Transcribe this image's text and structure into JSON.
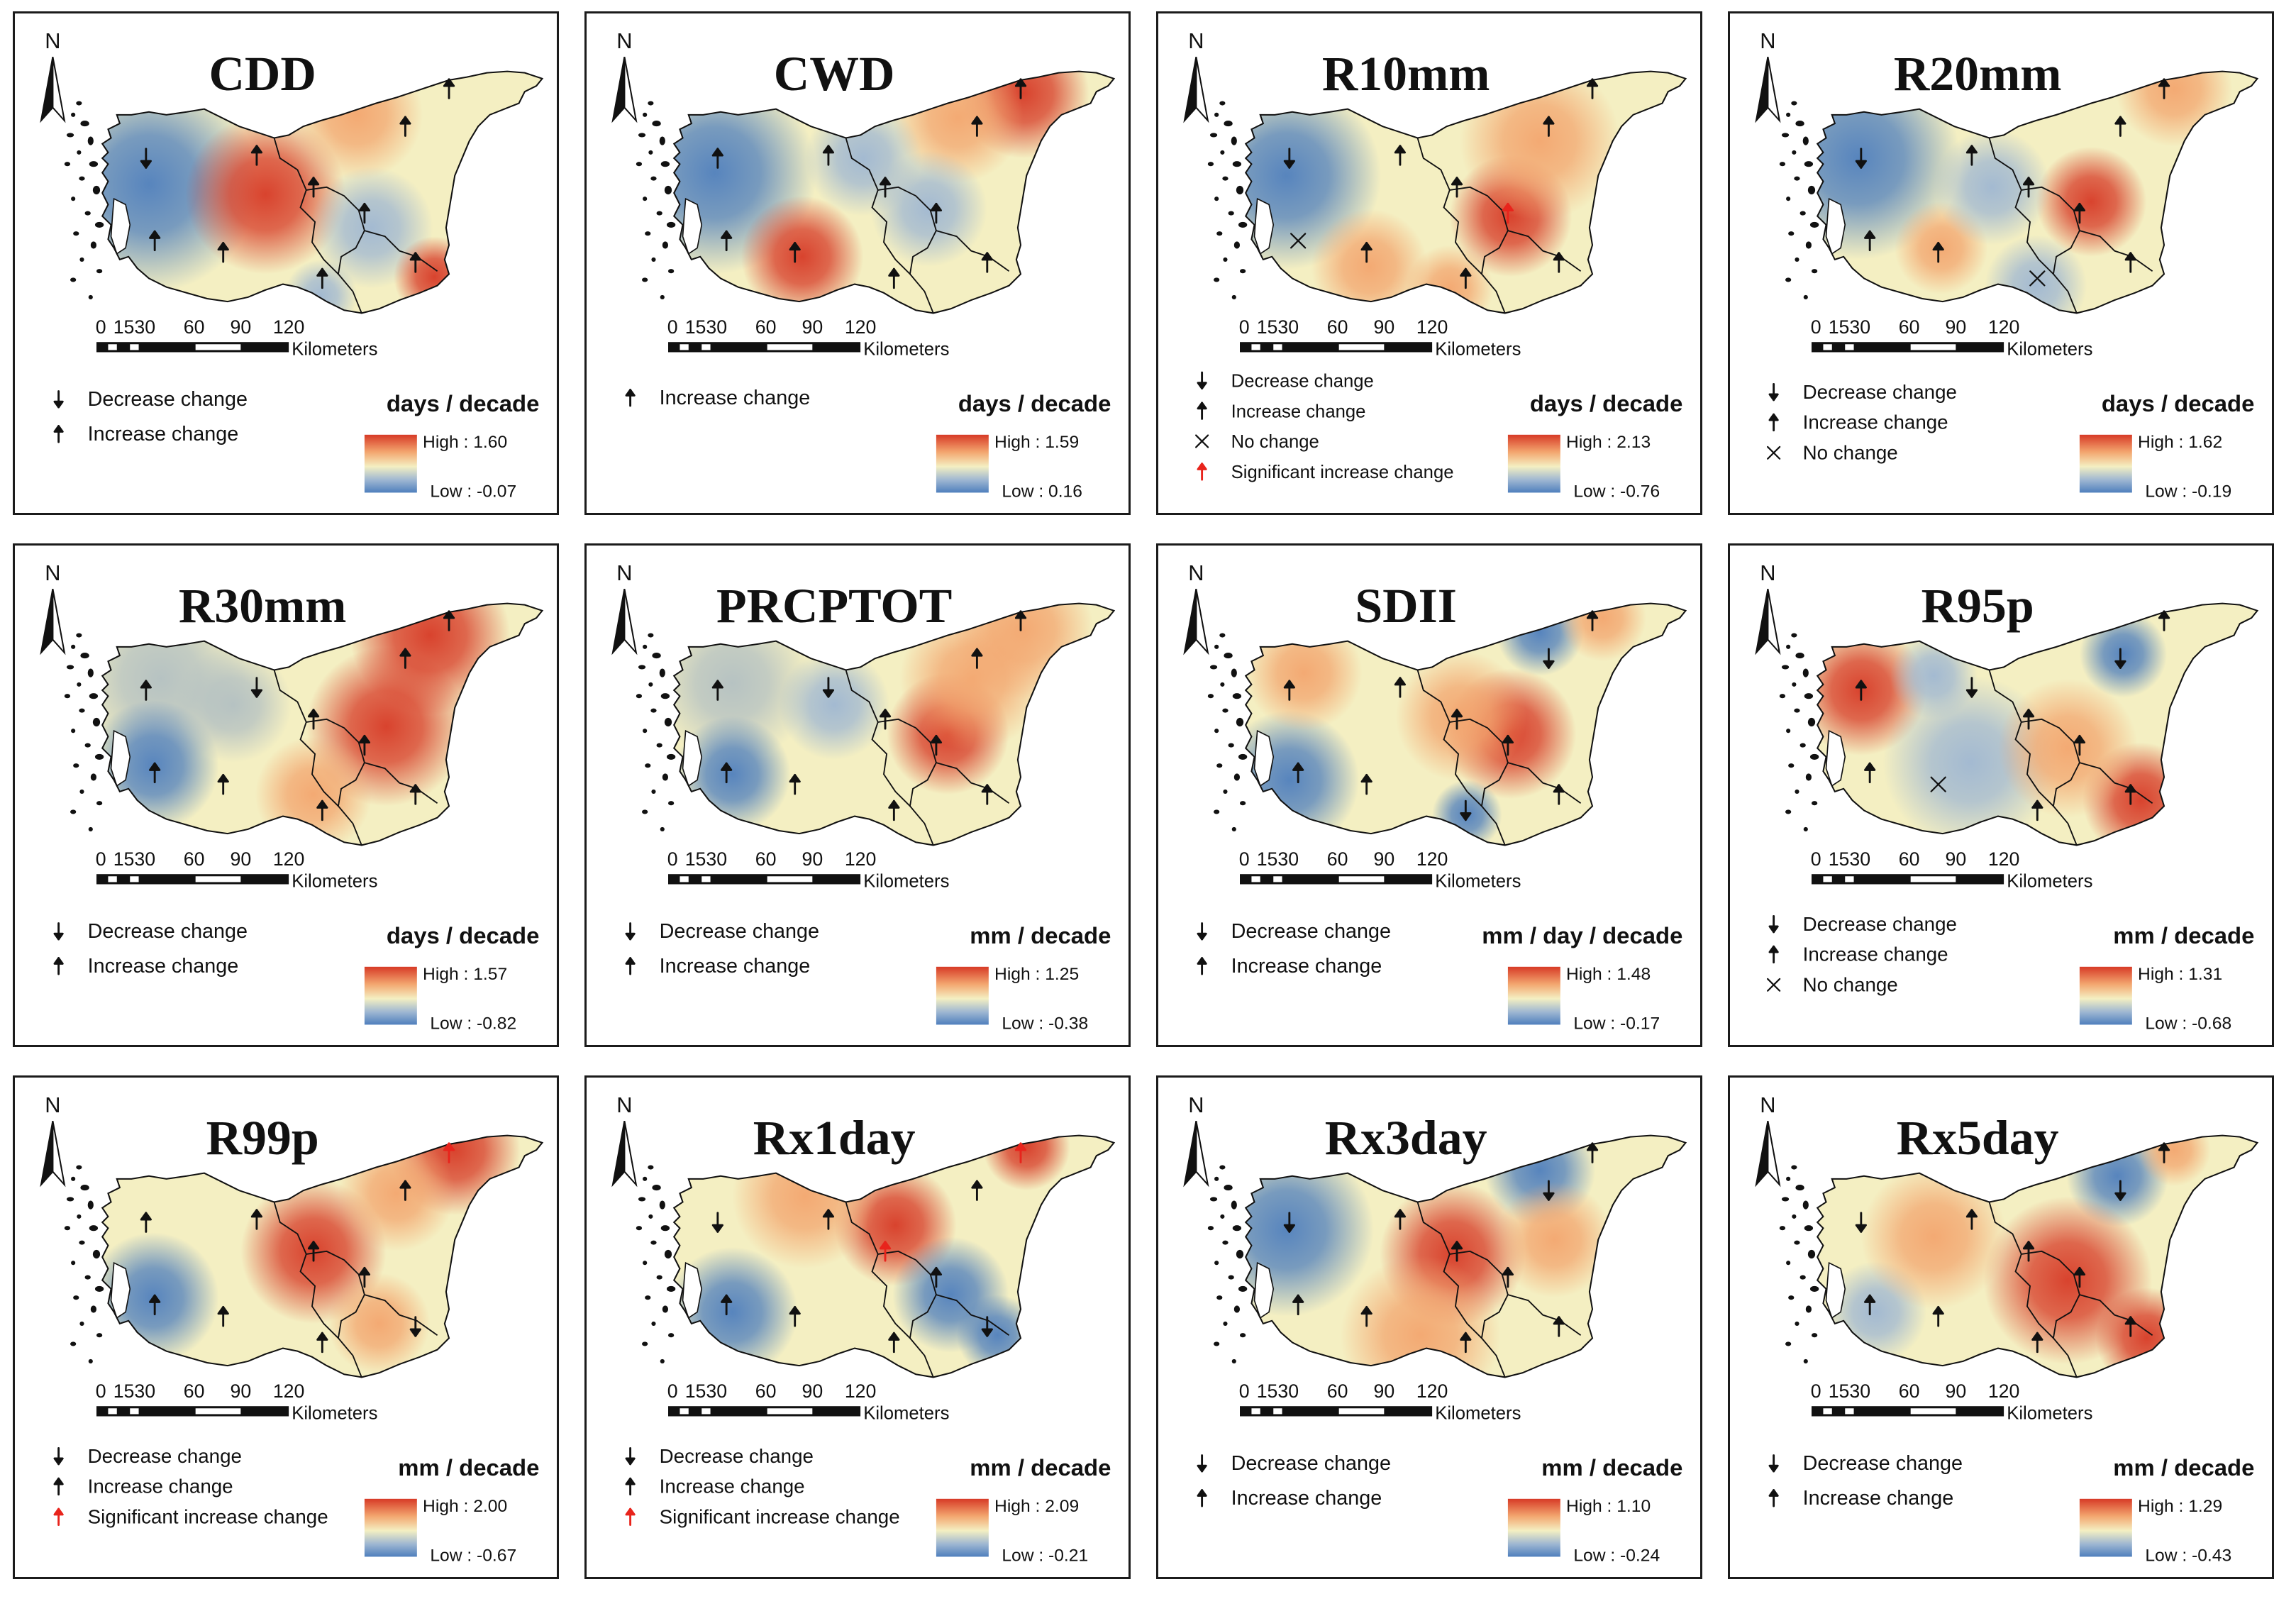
{
  "north": "N",
  "scale": {
    "ticks": [
      "0",
      "1530",
      "60",
      "90",
      "120"
    ],
    "unit": "Kilometers"
  },
  "colors": {
    "high": "#d73a26",
    "mid": "#f4efc2",
    "low": "#4f7fbd",
    "significant": "#e8241c",
    "symbol": "#111111"
  },
  "panels": [
    {
      "title": "CDD",
      "units": "days / decade",
      "high": "High : 1.60",
      "low": "Low : -0.07",
      "legend": [
        {
          "symbol": "decrease",
          "label": "Decrease change"
        },
        {
          "symbol": "increase",
          "label": "Increase change"
        }
      ],
      "stations": [
        "decrease",
        "increase",
        "increase",
        "increase",
        "increase",
        "increase",
        "increase",
        "increase",
        "increase",
        "increase"
      ]
    },
    {
      "title": "CWD",
      "units": "days / decade",
      "high": "High : 1.59",
      "low": "Low : 0.16",
      "legend": [
        {
          "symbol": "increase",
          "label": "Increase change"
        }
      ],
      "stations": [
        "increase",
        "increase",
        "increase",
        "increase",
        "increase",
        "increase",
        "increase",
        "increase",
        "increase",
        "increase"
      ]
    },
    {
      "title": "R10mm",
      "units": "days / decade",
      "high": "High : 2.13",
      "low": "Low : -0.76",
      "legend": [
        {
          "symbol": "decrease",
          "label": "Decrease change"
        },
        {
          "symbol": "increase",
          "label": "Increase change"
        },
        {
          "symbol": "no-change",
          "label": "No change"
        },
        {
          "symbol": "significant-increase",
          "label": "Significant increase change"
        }
      ],
      "stations": [
        "decrease",
        "increase",
        "increase",
        "increase",
        "increase",
        "significant-increase",
        "increase",
        "increase",
        "increase",
        "no-change"
      ]
    },
    {
      "title": "R20mm",
      "units": "days / decade",
      "high": "High : 1.62",
      "low": "Low : -0.19",
      "legend": [
        {
          "symbol": "decrease",
          "label": "Decrease change"
        },
        {
          "symbol": "increase",
          "label": "Increase change"
        },
        {
          "symbol": "no-change",
          "label": "No change"
        }
      ],
      "stations": [
        "decrease",
        "increase",
        "increase",
        "increase",
        "increase",
        "increase",
        "increase",
        "no-change",
        "increase",
        "increase"
      ]
    },
    {
      "title": "R30mm",
      "units": "days / decade",
      "high": "High : 1.57",
      "low": "Low : -0.82",
      "legend": [
        {
          "symbol": "decrease",
          "label": "Decrease change"
        },
        {
          "symbol": "increase",
          "label": "Increase change"
        }
      ],
      "stations": [
        "increase",
        "decrease",
        "increase",
        "increase",
        "increase",
        "increase",
        "increase",
        "increase",
        "increase",
        "increase"
      ]
    },
    {
      "title": "PRCPTOT",
      "units": "mm / decade",
      "high": "High : 1.25",
      "low": "Low : -0.38",
      "legend": [
        {
          "symbol": "decrease",
          "label": "Decrease change"
        },
        {
          "symbol": "increase",
          "label": "Increase change"
        }
      ],
      "stations": [
        "increase",
        "decrease",
        "increase",
        "increase",
        "increase",
        "increase",
        "increase",
        "increase",
        "increase",
        "increase"
      ]
    },
    {
      "title": "SDII",
      "units": "mm / day / decade",
      "high": "High : 1.48",
      "low": "Low : -0.17",
      "legend": [
        {
          "symbol": "decrease",
          "label": "Decrease change"
        },
        {
          "symbol": "increase",
          "label": "Increase change"
        }
      ],
      "stations": [
        "increase",
        "increase",
        "decrease",
        "increase",
        "increase",
        "increase",
        "increase",
        "decrease",
        "increase",
        "increase"
      ]
    },
    {
      "title": "R95p",
      "units": "mm / decade",
      "high": "High : 1.31",
      "low": "Low : -0.68",
      "legend": [
        {
          "symbol": "decrease",
          "label": "Decrease change"
        },
        {
          "symbol": "increase",
          "label": "Increase change"
        },
        {
          "symbol": "no-change",
          "label": "No change"
        }
      ],
      "stations": [
        "increase",
        "decrease",
        "decrease",
        "increase",
        "increase",
        "increase",
        "no-change",
        "increase",
        "increase",
        "increase"
      ]
    },
    {
      "title": "R99p",
      "units": "mm / decade",
      "high": "High : 2.00",
      "low": "Low : -0.67",
      "legend": [
        {
          "symbol": "decrease",
          "label": "Decrease change"
        },
        {
          "symbol": "increase",
          "label": "Increase change"
        },
        {
          "symbol": "significant-increase",
          "label": "Significant increase change"
        }
      ],
      "stations": [
        "increase",
        "increase",
        "increase",
        "significant-increase",
        "increase",
        "increase",
        "increase",
        "increase",
        "decrease",
        "increase"
      ]
    },
    {
      "title": "Rx1day",
      "units": "mm / decade",
      "high": "High : 2.09",
      "low": "Low : -0.21",
      "legend": [
        {
          "symbol": "decrease",
          "label": "Decrease change"
        },
        {
          "symbol": "increase",
          "label": "Increase change"
        },
        {
          "symbol": "significant-increase",
          "label": "Significant increase change"
        }
      ],
      "stations": [
        "decrease",
        "increase",
        "increase",
        "significant-increase",
        "significant-increase",
        "increase",
        "increase",
        "increase",
        "decrease",
        "increase"
      ]
    },
    {
      "title": "Rx3day",
      "units": "mm / decade",
      "high": "High : 1.10",
      "low": "Low : -0.24",
      "legend": [
        {
          "symbol": "decrease",
          "label": "Decrease change"
        },
        {
          "symbol": "increase",
          "label": "Increase change"
        }
      ],
      "stations": [
        "decrease",
        "increase",
        "decrease",
        "increase",
        "increase",
        "increase",
        "increase",
        "increase",
        "increase",
        "increase"
      ]
    },
    {
      "title": "Rx5day",
      "units": "mm / decade",
      "high": "High : 1.29",
      "low": "Low : -0.43",
      "legend": [
        {
          "symbol": "decrease",
          "label": "Decrease change"
        },
        {
          "symbol": "increase",
          "label": "Increase change"
        }
      ],
      "stations": [
        "decrease",
        "increase",
        "decrease",
        "increase",
        "increase",
        "increase",
        "increase",
        "increase",
        "increase",
        "increase"
      ]
    }
  ]
}
